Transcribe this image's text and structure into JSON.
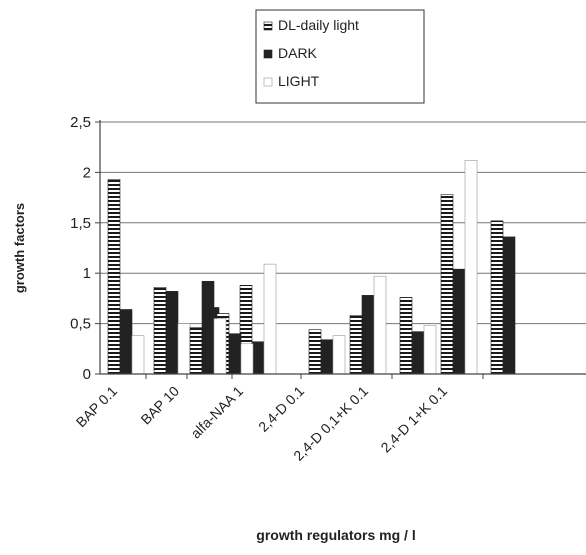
{
  "chart_data": {
    "type": "bar",
    "title": "",
    "xlabel": "growth regulators mg / l",
    "ylabel": "growth  factors",
    "ylim": [
      0,
      2.5
    ],
    "yticks": [
      "0",
      "0,5",
      "1",
      "1,5",
      "2",
      "2,5"
    ],
    "grid": true,
    "legend_position": "top",
    "categories": [
      "BAP 0.1",
      "BAP 10",
      "alfa-NAA 1",
      "2,4-D 0.1",
      "2,4-D 0,1+K 0.1",
      "2,4-D 1+K 0.1",
      ""
    ],
    "x_labels": [
      "BAP 0.1",
      "BAP 10",
      "alfa-NAA 1",
      "2,4-D 0.1",
      "2,4-D 0,1+K 0.1",
      "2,4-D 1+K 0.1"
    ],
    "series": [
      {
        "name": "DL-daily light",
        "fill": "striped",
        "values": [
          1.93,
          0.86,
          0.42,
          0.88,
          0.44,
          0.76,
          1.52
        ]
      },
      {
        "name": "DARK",
        "fill": "#222222",
        "values": [
          0.64,
          0.82,
          0.66,
          0.32,
          0.34,
          0.42,
          1.36
        ]
      },
      {
        "name": "LIGHT",
        "fill": "#ffffff",
        "values": [
          0.38,
          0.5,
          0.24,
          1.09,
          0.38,
          0.48,
          null
        ]
      }
    ],
    "extra_bars": [
      {
        "group": 2,
        "slot": "between",
        "values": [
          0.6,
          0.4,
          0.3
        ]
      },
      {
        "group": 3,
        "slot": "pre",
        "values": [
          0.46,
          0.92,
          0.55
        ]
      },
      {
        "group": 5,
        "slot": "pre",
        "values": [
          0.58,
          0.78,
          0.97
        ]
      },
      {
        "group": 6,
        "slot": "post",
        "values": [
          1.78,
          1.04,
          2.12
        ]
      }
    ]
  }
}
